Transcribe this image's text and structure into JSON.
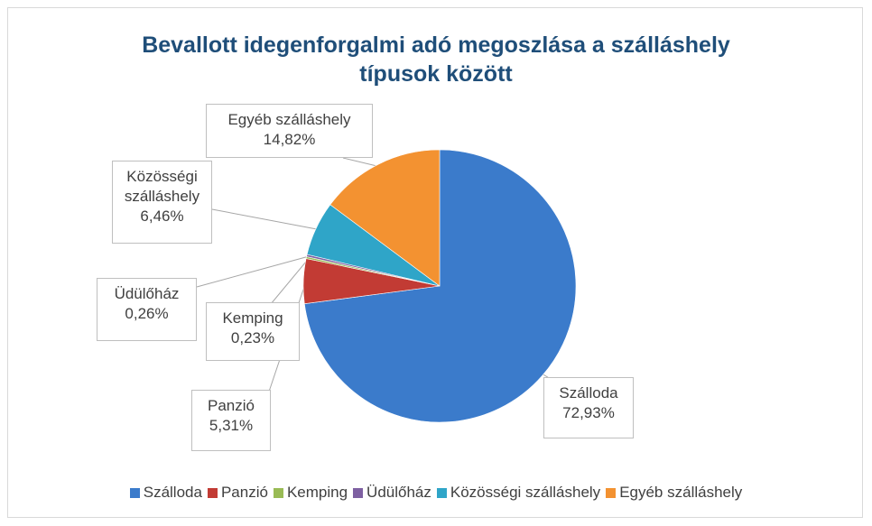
{
  "chart_data": {
    "type": "pie",
    "title": "Bevallott idegenforgalmi adó megoszlása a szálláshely típusok között",
    "categories": [
      "Szálloda",
      "Panzió",
      "Kemping",
      "Üdülőház",
      "Közösségi szálláshely",
      "Egyéb szálláshely"
    ],
    "values": [
      72.93,
      5.31,
      0.23,
      0.26,
      6.46,
      14.82
    ],
    "value_labels": [
      "72,93%",
      "5,31%",
      "0,23%",
      "0,26%",
      "6,46%",
      "14,82%"
    ],
    "colors": [
      "#3b7bcb",
      "#c23b34",
      "#99bb55",
      "#7e60a2",
      "#2fa5c8",
      "#f39231"
    ],
    "legend": "bottom"
  }
}
